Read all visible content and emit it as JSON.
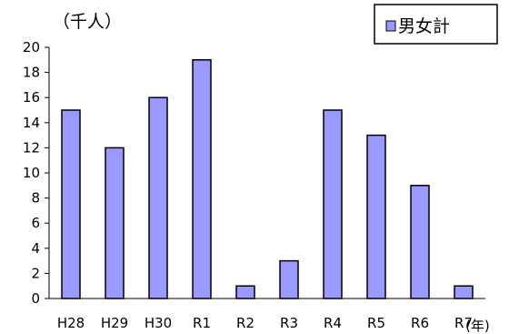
{
  "chart_data": {
    "type": "bar",
    "y_unit_label": "（千人）",
    "x_unit_label": "(年)",
    "categories": [
      "H28",
      "H29",
      "H30",
      "R1",
      "R2",
      "R3",
      "R4",
      "R5",
      "R6",
      "R7"
    ],
    "series": [
      {
        "name": "男女計",
        "values": [
          15,
          12,
          16,
          19,
          1,
          3,
          15,
          13,
          9,
          1
        ],
        "color": "#9999ff"
      }
    ],
    "ylim": [
      0,
      20
    ],
    "y_ticks": [
      0,
      2,
      4,
      6,
      8,
      10,
      12,
      14,
      16,
      18,
      20
    ],
    "grid": false,
    "legend_position": "top-right"
  }
}
